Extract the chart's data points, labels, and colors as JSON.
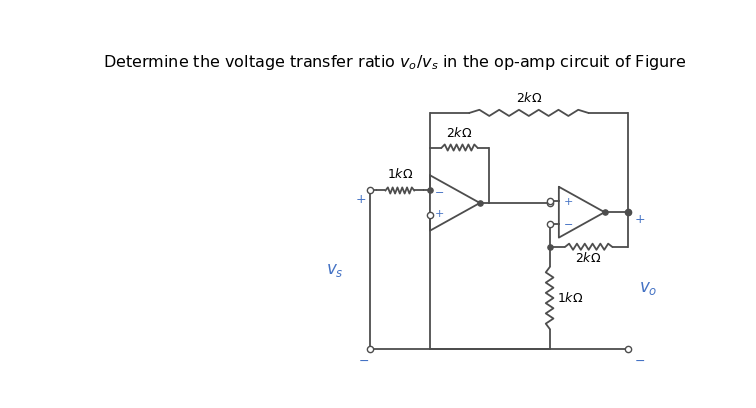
{
  "line_color": "#4d4d4d",
  "blue_color": "#4472C4",
  "bg_color": "#ffffff",
  "figsize": [
    7.56,
    4.08
  ],
  "dpi": 100,
  "title": "Determine the voltage transfer ratio $v_o/v_s$ in the op-amp circuit of Figure"
}
